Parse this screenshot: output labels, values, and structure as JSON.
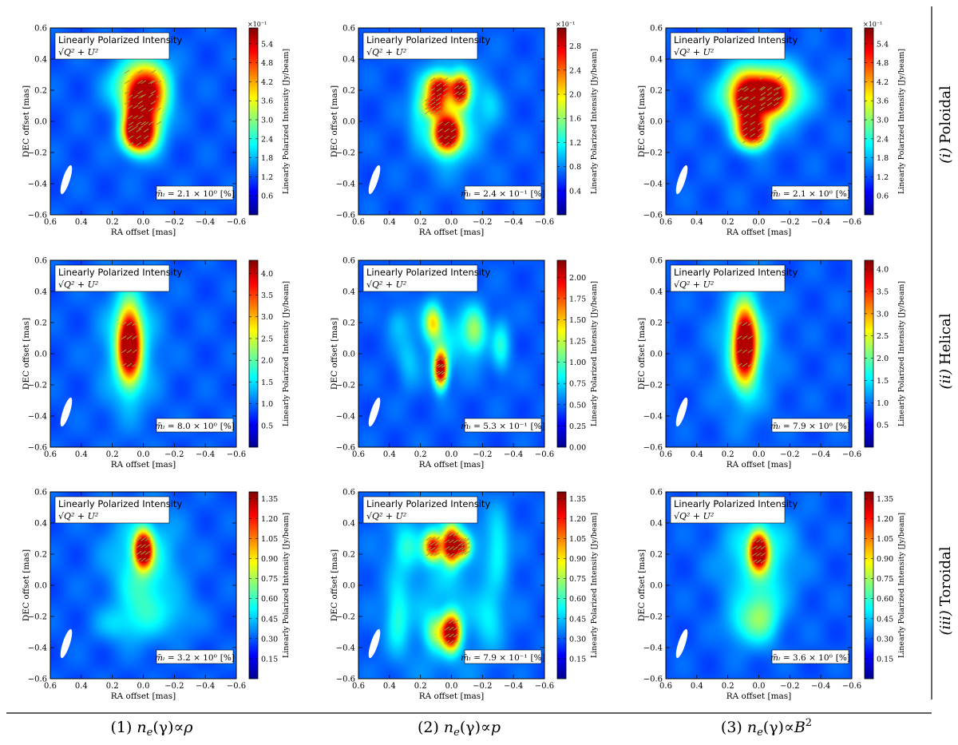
{
  "figure": {
    "row_labels": [
      {
        "num": "(i)",
        "text": "Poloidal"
      },
      {
        "num": "(ii)",
        "text": "Helical"
      },
      {
        "num": "(iii)",
        "text": "Toroidal"
      }
    ],
    "column_labels": [
      {
        "num": "(1)",
        "lhs": "n",
        "sub": "e",
        "mid": "(γ)∝",
        "rhs": "ρ",
        "sup": ""
      },
      {
        "num": "(2)",
        "lhs": "n",
        "sub": "e",
        "mid": "(γ)∝",
        "rhs": "p",
        "sup": ""
      },
      {
        "num": "(3)",
        "lhs": "n",
        "sub": "e",
        "mid": "(γ)∝",
        "rhs": "B",
        "sup": "2"
      }
    ]
  },
  "chart_data": [
    {
      "type": "heatmap",
      "id": "poloidal-rho",
      "row": 0,
      "col": 0,
      "title_line1": "Linearly Polarized Intensity",
      "title_line2": "√Q² + U²",
      "xlabel": "RA offset [mas]",
      "ylabel": "DEC offset [mas]",
      "xlim": [
        0.6,
        -0.6
      ],
      "ylim": [
        -0.6,
        0.6
      ],
      "x_ticks": [
        "0.6",
        "0.4",
        "0.2",
        "0.0",
        "−0.2",
        "−0.4",
        "−0.6"
      ],
      "y_ticks": [
        "0.6",
        "0.4",
        "0.2",
        "0.0",
        "−0.2",
        "−0.4",
        "−0.6"
      ],
      "colorbar_label": "Linearly Polarized Intensity [Jy/beam]",
      "colorbar_multiplier": "×10⁻¹",
      "colorbar_range": [
        0,
        5.9
      ],
      "colorbar_ticks": [
        "0.6",
        "1.2",
        "1.8",
        "2.4",
        "3.0",
        "3.6",
        "4.2",
        "4.8",
        "5.4"
      ],
      "colorbar_tick_values": [
        0.6,
        1.2,
        1.8,
        2.4,
        3.0,
        3.6,
        4.2,
        4.8,
        5.4
      ],
      "mean_label": "m̄ₗ = ",
      "mean_value": "2.1 × 10⁰",
      "mean_unit": "[%]",
      "blobs": [
        {
          "x": 0.02,
          "y": 0.22,
          "a": 0.12,
          "b": 0.12,
          "amp": 0.55
        },
        {
          "x": -0.05,
          "y": 0.12,
          "a": 0.07,
          "b": 0.16,
          "amp": 0.5
        },
        {
          "x": 0.03,
          "y": -0.08,
          "a": 0.07,
          "b": 0.08,
          "amp": 1.0
        },
        {
          "x": 0.05,
          "y": 0.06,
          "a": 0.05,
          "b": 0.12,
          "amp": 0.55
        }
      ]
    },
    {
      "type": "heatmap",
      "id": "poloidal-p",
      "row": 0,
      "col": 1,
      "title_line1": "Linearly Polarized Intensity",
      "title_line2": "√Q² + U²",
      "xlabel": "RA offset [mas]",
      "ylabel": "DEC offset [mas]",
      "xlim": [
        0.6,
        -0.6
      ],
      "ylim": [
        -0.6,
        0.6
      ],
      "x_ticks": [
        "0.6",
        "0.4",
        "0.2",
        "0.0",
        "−0.2",
        "−0.4",
        "−0.6"
      ],
      "y_ticks": [
        "0.6",
        "0.4",
        "0.2",
        "0.0",
        "−0.2",
        "−0.4",
        "−0.6"
      ],
      "colorbar_label": "Linearly Polarized Intensity [Jy/beam]",
      "colorbar_multiplier": "×10⁻¹",
      "colorbar_range": [
        0,
        3.1
      ],
      "colorbar_ticks": [
        "0.4",
        "0.8",
        "1.2",
        "1.6",
        "2.0",
        "2.4",
        "2.8"
      ],
      "colorbar_tick_values": [
        0.4,
        0.8,
        1.2,
        1.6,
        2.0,
        2.4,
        2.8
      ],
      "mean_label": "m̄ₗ = ",
      "mean_value": "2.4 × 10⁻¹",
      "mean_unit": "[%]",
      "blobs": [
        {
          "x": 0.03,
          "y": -0.08,
          "a": 0.06,
          "b": 0.08,
          "amp": 1.0
        },
        {
          "x": 0.08,
          "y": 0.22,
          "a": 0.06,
          "b": 0.06,
          "amp": 0.75
        },
        {
          "x": -0.06,
          "y": 0.2,
          "a": 0.04,
          "b": 0.07,
          "amp": 0.75
        },
        {
          "x": 0.12,
          "y": 0.1,
          "a": 0.05,
          "b": 0.05,
          "amp": 0.55
        },
        {
          "x": 0.0,
          "y": 0.05,
          "a": 0.14,
          "b": 0.22,
          "amp": 0.25
        },
        {
          "x": 0.22,
          "y": 0.05,
          "a": 0.04,
          "b": 0.12,
          "amp": 0.12
        },
        {
          "x": -0.25,
          "y": 0.12,
          "a": 0.05,
          "b": 0.1,
          "amp": 0.1
        }
      ]
    },
    {
      "type": "heatmap",
      "id": "poloidal-b2",
      "row": 0,
      "col": 2,
      "title_line1": "Linearly Polarized Intensity",
      "title_line2": "√Q² + U²",
      "xlabel": "RA offset [mas]",
      "ylabel": "DEC offset [mas]",
      "xlim": [
        0.6,
        -0.6
      ],
      "ylim": [
        -0.6,
        0.6
      ],
      "x_ticks": [
        "0.6",
        "0.4",
        "0.2",
        "0.0",
        "−0.2",
        "−0.4",
        "−0.6"
      ],
      "y_ticks": [
        "0.6",
        "0.4",
        "0.2",
        "0.0",
        "−0.2",
        "−0.4",
        "−0.6"
      ],
      "colorbar_label": "Linearly Polarized Intensity [Jy/beam]",
      "colorbar_multiplier": "×10⁻¹",
      "colorbar_range": [
        0,
        5.9
      ],
      "colorbar_ticks": [
        "0.6",
        "1.2",
        "1.8",
        "2.4",
        "3.0",
        "3.6",
        "4.2",
        "4.8",
        "5.4"
      ],
      "colorbar_tick_values": [
        0.6,
        1.2,
        1.8,
        2.4,
        3.0,
        3.6,
        4.2,
        4.8,
        5.4
      ],
      "mean_label": "m̄ₗ = ",
      "mean_value": "2.1 × 10⁰",
      "mean_unit": "[%]",
      "blobs": [
        {
          "x": -0.02,
          "y": 0.18,
          "a": 0.16,
          "b": 0.12,
          "amp": 0.85
        },
        {
          "x": 0.08,
          "y": 0.12,
          "a": 0.06,
          "b": 0.1,
          "amp": 0.55
        },
        {
          "x": 0.04,
          "y": -0.07,
          "a": 0.07,
          "b": 0.07,
          "amp": 0.9
        },
        {
          "x": -0.07,
          "y": 0.16,
          "a": 0.06,
          "b": 0.06,
          "amp": 0.55
        }
      ]
    },
    {
      "type": "heatmap",
      "id": "helical-rho",
      "row": 1,
      "col": 0,
      "title_line1": "Linearly Polarized Intensity",
      "title_line2": "√Q² + U²",
      "xlabel": "RA offset [mas]",
      "ylabel": "DEC offset [mas]",
      "xlim": [
        0.6,
        -0.6
      ],
      "ylim": [
        -0.6,
        0.6
      ],
      "x_ticks": [
        "0.6",
        "0.4",
        "0.2",
        "0.0",
        "−0.2",
        "−0.4",
        "−0.6"
      ],
      "y_ticks": [
        "0.6",
        "0.4",
        "0.2",
        "0.0",
        "−0.2",
        "−0.4",
        "−0.6"
      ],
      "colorbar_label": "Linearly Polarized Intensity [Jy/beam]",
      "colorbar_multiplier": "",
      "colorbar_range": [
        0,
        4.3
      ],
      "colorbar_ticks": [
        "0.5",
        "1.0",
        "1.5",
        "2.0",
        "2.5",
        "3.0",
        "3.5",
        "4.0"
      ],
      "colorbar_tick_values": [
        0.5,
        1.0,
        1.5,
        2.0,
        2.5,
        3.0,
        3.5,
        4.0
      ],
      "mean_label": "m̄ₗ = ",
      "mean_value": "8.0 × 10⁰",
      "mean_unit": "[%]",
      "blobs": [
        {
          "x": 0.09,
          "y": 0.06,
          "a": 0.05,
          "b": 0.16,
          "amp": 1.0
        },
        {
          "x": 0.09,
          "y": 0.05,
          "a": 0.12,
          "b": 0.28,
          "amp": 0.22
        }
      ]
    },
    {
      "type": "heatmap",
      "id": "helical-p",
      "row": 1,
      "col": 1,
      "title_line1": "Linearly Polarized Intensity",
      "title_line2": "√Q² + U²",
      "xlabel": "RA offset [mas]",
      "ylabel": "DEC offset [mas]",
      "xlim": [
        0.6,
        -0.6
      ],
      "ylim": [
        -0.6,
        0.6
      ],
      "x_ticks": [
        "0.6",
        "0.4",
        "0.2",
        "0.0",
        "−0.2",
        "−0.4",
        "−0.6"
      ],
      "y_ticks": [
        "0.6",
        "0.4",
        "0.2",
        "0.0",
        "−0.2",
        "−0.4",
        "−0.6"
      ],
      "colorbar_label": "Linearly Polarized Intensity [Jy/beam]",
      "colorbar_multiplier": "",
      "colorbar_range": [
        0,
        2.2
      ],
      "colorbar_ticks": [
        "0.00",
        "0.25",
        "0.50",
        "0.75",
        "1.00",
        "1.25",
        "1.50",
        "1.75",
        "2.00"
      ],
      "colorbar_tick_values": [
        0,
        0.25,
        0.5,
        0.75,
        1.0,
        1.25,
        1.5,
        1.75,
        2.0
      ],
      "mean_label": "m̄ₗ = ",
      "mean_value": "5.3 × 10⁻¹",
      "mean_unit": "[%]",
      "blobs": [
        {
          "x": 0.07,
          "y": -0.1,
          "a": 0.03,
          "b": 0.08,
          "amp": 1.0
        },
        {
          "x": 0.12,
          "y": 0.2,
          "a": 0.04,
          "b": 0.08,
          "amp": 0.45
        },
        {
          "x": -0.15,
          "y": 0.15,
          "a": 0.05,
          "b": 0.1,
          "amp": 0.3
        },
        {
          "x": -0.32,
          "y": 0.05,
          "a": 0.04,
          "b": 0.12,
          "amp": 0.2
        },
        {
          "x": 0.28,
          "y": -0.05,
          "a": 0.05,
          "b": 0.12,
          "amp": 0.12
        },
        {
          "x": 0.35,
          "y": 0.2,
          "a": 0.05,
          "b": 0.08,
          "amp": 0.12
        },
        {
          "x": 0.0,
          "y": 0.1,
          "a": 0.15,
          "b": 0.15,
          "amp": 0.15
        }
      ]
    },
    {
      "type": "heatmap",
      "id": "helical-b2",
      "row": 1,
      "col": 2,
      "title_line1": "Linearly Polarized Intensity",
      "title_line2": "√Q² + U²",
      "xlabel": "RA offset [mas]",
      "ylabel": "DEC offset [mas]",
      "xlim": [
        0.6,
        -0.6
      ],
      "ylim": [
        -0.6,
        0.6
      ],
      "x_ticks": [
        "0.6",
        "0.4",
        "0.2",
        "0.0",
        "−0.2",
        "−0.4",
        "−0.6"
      ],
      "y_ticks": [
        "0.6",
        "0.4",
        "0.2",
        "0.0",
        "−0.2",
        "−0.4",
        "−0.6"
      ],
      "colorbar_label": "Linearly Polarized Intensity [Jy/beam]",
      "colorbar_multiplier": "",
      "colorbar_range": [
        0,
        4.2
      ],
      "colorbar_ticks": [
        "0.5",
        "1.0",
        "1.5",
        "2.0",
        "2.5",
        "3.0",
        "3.5",
        "4.0"
      ],
      "colorbar_tick_values": [
        0.5,
        1.0,
        1.5,
        2.0,
        2.5,
        3.0,
        3.5,
        4.0
      ],
      "mean_label": "m̄ₗ = ",
      "mean_value": "7.9 × 10⁰",
      "mean_unit": "[%]",
      "blobs": [
        {
          "x": 0.09,
          "y": 0.06,
          "a": 0.05,
          "b": 0.16,
          "amp": 1.0
        },
        {
          "x": 0.09,
          "y": 0.05,
          "a": 0.12,
          "b": 0.28,
          "amp": 0.22
        }
      ]
    },
    {
      "type": "heatmap",
      "id": "toroidal-rho",
      "row": 2,
      "col": 0,
      "title_line1": "Linearly Polarized Intensity",
      "title_line2": "√Q² + U²",
      "xlabel": "RA offset [mas]",
      "ylabel": "DEC offset [mas]",
      "xlim": [
        0.6,
        -0.6
      ],
      "ylim": [
        -0.6,
        0.6
      ],
      "x_ticks": [
        "0.6",
        "0.4",
        "0.2",
        "0.0",
        "−0.2",
        "−0.4",
        "−0.6"
      ],
      "y_ticks": [
        "0.6",
        "0.4",
        "0.2",
        "0.0",
        "−0.2",
        "−0.4",
        "−0.6"
      ],
      "colorbar_label": "Linearly Polarized Intensity [Jy/beam]",
      "colorbar_multiplier": "",
      "colorbar_range": [
        0,
        1.4
      ],
      "colorbar_ticks": [
        "0.15",
        "0.30",
        "0.45",
        "0.60",
        "0.75",
        "0.90",
        "1.05",
        "1.20",
        "1.35"
      ],
      "colorbar_tick_values": [
        0.15,
        0.3,
        0.45,
        0.6,
        0.75,
        0.9,
        1.05,
        1.2,
        1.35
      ],
      "mean_label": "m̄ₗ = ",
      "mean_value": "3.2 × 10⁰",
      "mean_unit": "[%]",
      "blobs": [
        {
          "x": 0.0,
          "y": 0.23,
          "a": 0.04,
          "b": 0.08,
          "amp": 1.0
        },
        {
          "x": 0.0,
          "y": 0.18,
          "a": 0.16,
          "b": 0.2,
          "amp": 0.22
        },
        {
          "x": 0.0,
          "y": -0.15,
          "a": 0.1,
          "b": 0.15,
          "amp": 0.18
        },
        {
          "x": 0.18,
          "y": -0.25,
          "a": 0.1,
          "b": 0.08,
          "amp": 0.12
        },
        {
          "x": -0.22,
          "y": -0.2,
          "a": 0.1,
          "b": 0.1,
          "amp": 0.1
        }
      ]
    },
    {
      "type": "heatmap",
      "id": "toroidal-p",
      "row": 2,
      "col": 1,
      "title_line1": "Linearly Polarized Intensity",
      "title_line2": "√Q² + U²",
      "xlabel": "RA offset [mas]",
      "ylabel": "DEC offset [mas]",
      "xlim": [
        0.6,
        -0.6
      ],
      "ylim": [
        -0.6,
        0.6
      ],
      "x_ticks": [
        "0.6",
        "0.4",
        "0.2",
        "0.0",
        "−0.2",
        "−0.4",
        "−0.6"
      ],
      "y_ticks": [
        "0.6",
        "0.4",
        "0.2",
        "0.0",
        "−0.2",
        "−0.4",
        "−0.6"
      ],
      "colorbar_label": "Linearly Polarized Intensity [Jy/beam]",
      "colorbar_multiplier": "",
      "colorbar_range": [
        0,
        1.4
      ],
      "colorbar_ticks": [
        "0.15",
        "0.30",
        "0.45",
        "0.60",
        "0.75",
        "0.90",
        "1.05",
        "1.20",
        "1.35"
      ],
      "colorbar_tick_values": [
        0.15,
        0.3,
        0.45,
        0.6,
        0.75,
        0.9,
        1.05,
        1.2,
        1.35
      ],
      "mean_label": "m̄ₗ = ",
      "mean_value": "7.9 × 10⁻¹",
      "mean_unit": "[%]",
      "blobs": [
        {
          "x": 0.0,
          "y": 0.26,
          "a": 0.04,
          "b": 0.08,
          "amp": 1.0
        },
        {
          "x": 0.12,
          "y": 0.25,
          "a": 0.04,
          "b": 0.06,
          "amp": 0.75
        },
        {
          "x": -0.08,
          "y": 0.25,
          "a": 0.03,
          "b": 0.05,
          "amp": 0.55
        },
        {
          "x": 0.0,
          "y": -0.3,
          "a": 0.04,
          "b": 0.08,
          "amp": 0.95
        },
        {
          "x": 0.1,
          "y": -0.3,
          "a": 0.05,
          "b": 0.08,
          "amp": 0.3
        },
        {
          "x": 0.35,
          "y": -0.2,
          "a": 0.05,
          "b": 0.15,
          "amp": 0.2
        },
        {
          "x": -0.3,
          "y": 0.25,
          "a": 0.05,
          "b": 0.15,
          "amp": 0.18
        },
        {
          "x": 0.3,
          "y": 0.25,
          "a": 0.06,
          "b": 0.1,
          "amp": 0.18
        },
        {
          "x": -0.25,
          "y": -0.2,
          "a": 0.06,
          "b": 0.12,
          "amp": 0.15
        },
        {
          "x": 0.05,
          "y": 0.0,
          "a": 0.25,
          "b": 0.45,
          "amp": 0.12
        }
      ]
    },
    {
      "type": "heatmap",
      "id": "toroidal-b2",
      "row": 2,
      "col": 2,
      "title_line1": "Linearly Polarized Intensity",
      "title_line2": "√Q² + U²",
      "xlabel": "RA offset [mas]",
      "ylabel": "DEC offset [mas]",
      "xlim": [
        0.6,
        -0.6
      ],
      "ylim": [
        -0.6,
        0.6
      ],
      "x_ticks": [
        "0.6",
        "0.4",
        "0.2",
        "0.0",
        "−0.2",
        "−0.4",
        "−0.6"
      ],
      "y_ticks": [
        "0.6",
        "0.4",
        "0.2",
        "0.0",
        "−0.2",
        "−0.4",
        "−0.6"
      ],
      "colorbar_label": "Linearly Polarized Intensity [Jy/beam]",
      "colorbar_multiplier": "",
      "colorbar_range": [
        0,
        1.4
      ],
      "colorbar_ticks": [
        "0.15",
        "0.30",
        "0.45",
        "0.60",
        "0.75",
        "0.90",
        "1.05",
        "1.20",
        "1.35"
      ],
      "colorbar_tick_values": [
        0.15,
        0.3,
        0.45,
        0.6,
        0.75,
        0.9,
        1.05,
        1.2,
        1.35
      ],
      "mean_label": "m̄ₗ = ",
      "mean_value": "3.6 × 10⁰",
      "mean_unit": "[%]",
      "blobs": [
        {
          "x": 0.0,
          "y": 0.22,
          "a": 0.04,
          "b": 0.08,
          "amp": 1.0
        },
        {
          "x": 0.0,
          "y": 0.18,
          "a": 0.16,
          "b": 0.2,
          "amp": 0.25
        },
        {
          "x": -0.02,
          "y": -0.2,
          "a": 0.08,
          "b": 0.12,
          "amp": 0.3
        },
        {
          "x": 0.12,
          "y": -0.25,
          "a": 0.08,
          "b": 0.1,
          "amp": 0.15
        }
      ]
    }
  ]
}
